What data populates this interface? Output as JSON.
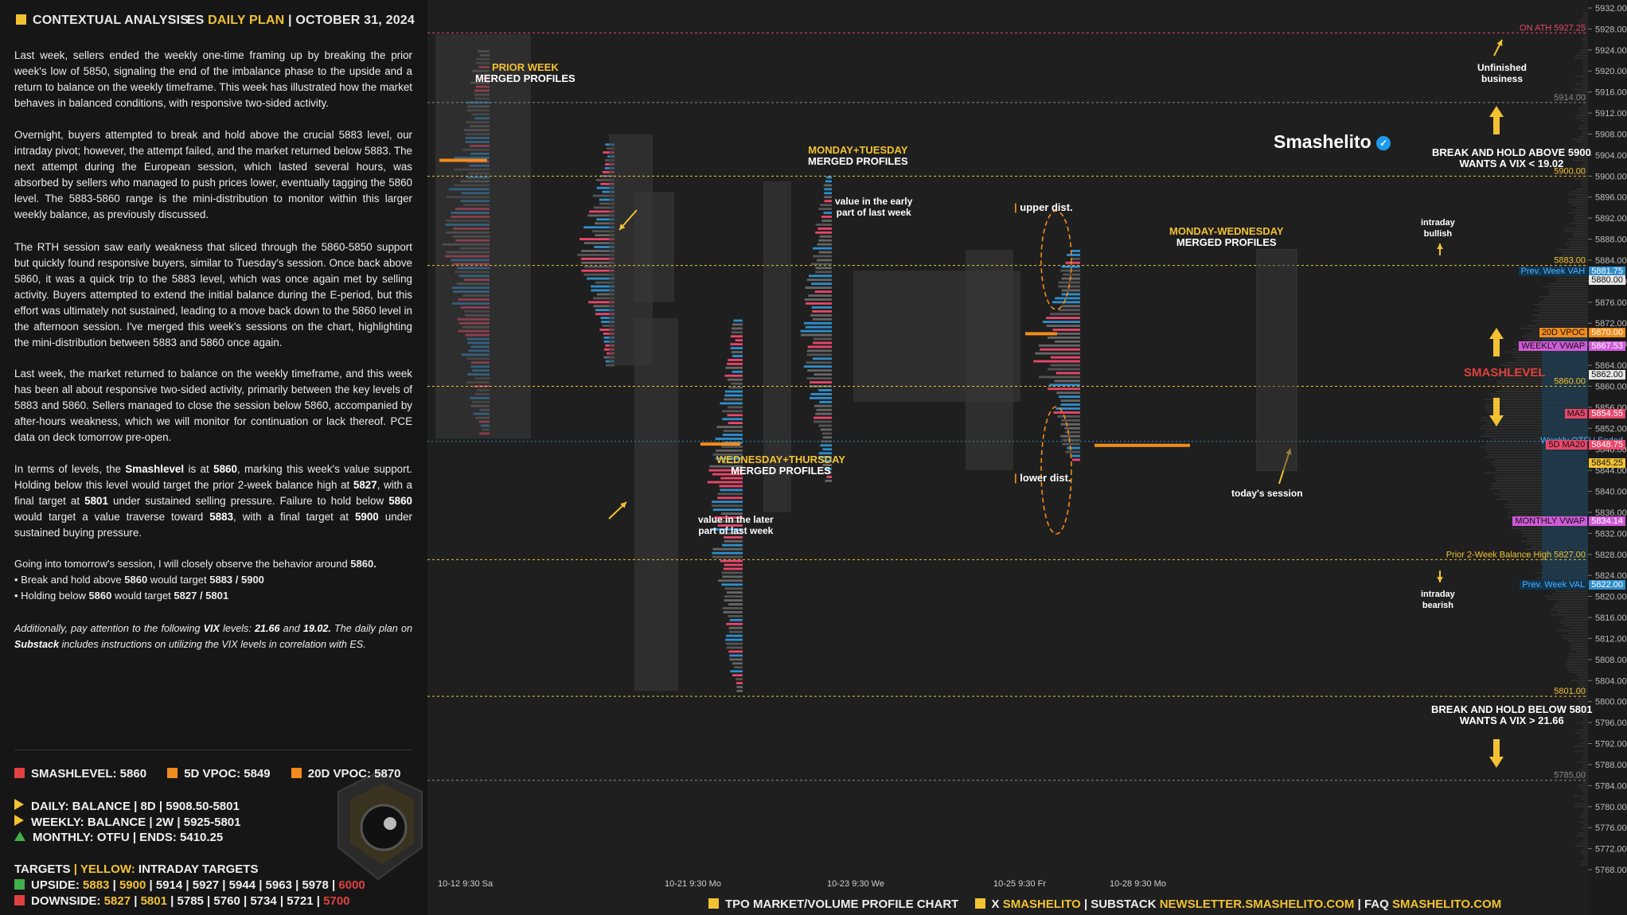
{
  "header": {
    "left_title": "CONTEXTUAL ANALYSIS",
    "right_es": "ES",
    "right_plan": "DAILY PLAN",
    "right_sep": "|",
    "right_date": "OCTOBER 31, 2024"
  },
  "analysis": {
    "p1": "Last week, sellers ended the weekly one-time framing up by breaking the prior week's low of 5850, signaling the end of the imbalance phase to the upside and a return to balance on the weekly timeframe. This week has illustrated how the market behaves in balanced conditions, with responsive two-sided activity.",
    "p2": "Overnight, buyers attempted to break and hold above the crucial 5883 level, our intraday pivot; however, the attempt failed, and the market returned below 5883. The next attempt during the European session, which lasted several hours, was absorbed by sellers who managed to push prices lower, eventually tagging the 5860 level. The 5883-5860 range is the mini-distribution to monitor within this larger weekly balance, as previously discussed.",
    "p3": "The RTH session saw early weakness that sliced through the 5860-5850 support but quickly found responsive buyers, similar to Tuesday's session. Once back above 5860, it was a quick trip to the 5883 level, which was once again met by selling activity. Buyers attempted to extend the initial balance during the E-period, but this effort was ultimately not sustained, leading to a move back down to the 5860 level in the afternoon session. I've merged this week's sessions on the chart, highlighting the mini-distribution between 5883 and 5860 once again.",
    "p4": "Last week, the market returned to balance on the weekly timeframe, and this week has been all about responsive two-sided activity, primarily between the key levels of 5883 and 5860. Sellers managed to close the session below 5860, accompanied by after-hours weakness, which we will monitor for continuation or lack thereof. PCE data on deck tomorrow pre-open.",
    "p5_a": "In terms of levels, the ",
    "p5_b": "Smashlevel",
    "p5_c": " is at ",
    "p5_d": "5860",
    "p5_e": ", marking this week's value support. Holding below this level would target the prior 2-week balance high at ",
    "p5_f": "5827",
    "p5_g": ", with a final target at ",
    "p5_h": "5801",
    "p5_i": " under sustained selling pressure. Failure to hold below ",
    "p5_j": "5860",
    "p5_k": " would target a value traverse toward ",
    "p5_l": "5883",
    "p5_m": ", with a final target at ",
    "p5_n": "5900",
    "p5_o": " under sustained buying pressure.",
    "p6_a": "Going into tomorrow's session, I will closely observe the behavior around ",
    "p6_b": "5860.",
    "b1_a": "• Break and hold above ",
    "b1_b": "5860",
    "b1_c": " would target ",
    "b1_d": "5883 / 5900",
    "b2_a": "• Holding below ",
    "b2_b": "5860",
    "b2_c": " would target ",
    "b2_d": "5827 / 5801",
    "p7_a": "Additionally, pay attention to the following ",
    "p7_b": "VIX",
    "p7_c": " levels: ",
    "p7_d": "21.66",
    "p7_e": " and ",
    "p7_f": "19.02.",
    "p7_g": " The daily plan on ",
    "p7_h": "Substack",
    "p7_i": " includes instructions on utilizing the VIX levels in correlation with ES."
  },
  "levels_summary": {
    "smashlevel": "SMASHLEVEL: 5860",
    "vpoc5d": "5D VPOC: 5849",
    "vpoc20d": "20D VPOC: 5870",
    "daily": "DAILY: BALANCE | 8D | 5908.50-5801",
    "weekly": "WEEKLY: BALANCE | 2W | 5925-5801",
    "monthly": "MONTHLY: OTFU | ENDS: 5410.25",
    "targets_a": "TARGETS",
    "targets_b": "|",
    "targets_c": "YELLOW:",
    "targets_d": "INTRADAY TARGETS",
    "upside_label": "UPSIDE:",
    "upside_y1": "5883",
    "upside_y2": "5900",
    "upside_rest": "5914 | 5927 | 5944 | 5963 | 5978",
    "upside_last": "6000",
    "downside_label": "DOWNSIDE:",
    "downside_y1": "5827",
    "downside_y2": "5801",
    "downside_rest": "5785 | 5760 | 5734 | 5721",
    "downside_last": "5700",
    "sep": "|"
  },
  "colors": {
    "yellow": "#f2c232",
    "red": "#e0413f",
    "orange": "#f28c1c",
    "green": "#3fb04a",
    "blue": "#2f8ecb",
    "pink": "#e8476a",
    "magenta": "#d05ad7"
  },
  "chart_data": {
    "type": "table",
    "price_axis": {
      "min": 5768,
      "max": 5932,
      "ticks": [
        5932,
        5928,
        5924,
        5920,
        5916,
        5912,
        5908,
        5904,
        5900,
        5896,
        5892,
        5888,
        5884,
        5880,
        5876,
        5872,
        5868,
        5864,
        5860,
        5856,
        5852,
        5848,
        5844,
        5840,
        5836,
        5832,
        5828,
        5824,
        5820,
        5816,
        5812,
        5808,
        5804,
        5800,
        5796,
        5792,
        5788,
        5784,
        5780,
        5776,
        5772,
        5768
      ]
    },
    "x_labels": [
      "10-12 9:30 Sa",
      "10-21 9:30 Mo",
      "10-23 9:30 We",
      "10-25 9:30 Fr",
      "10-28 9:30 Mo"
    ],
    "levels": [
      {
        "label": "ON ATH 5927.25",
        "price": 5927.25
      },
      {
        "label": "5914.00",
        "price": 5914.0
      },
      {
        "label": "5900.00",
        "price": 5900.0
      },
      {
        "label": "5883.00",
        "price": 5883.0
      },
      {
        "label": "5860.00",
        "price": 5860.0
      },
      {
        "label": "Prior 2-Week Balance High 5827.00",
        "price": 5827.0
      },
      {
        "label": "5801.00",
        "price": 5801.0
      },
      {
        "label": "5785.00",
        "price": 5785.0
      }
    ],
    "tags": [
      {
        "label": "Prev. Week VAH",
        "value": "5881.75",
        "color": "blue"
      },
      {
        "label": "",
        "value": "5880.00",
        "color": "white"
      },
      {
        "label": "20D VPOC",
        "value": "5870.00",
        "color": "orange"
      },
      {
        "label": "WEEKLY VWAP",
        "value": "5867.53",
        "color": "magenta"
      },
      {
        "label": "",
        "value": "5862.00",
        "color": "white"
      },
      {
        "label": "MA5",
        "value": "5854.55",
        "color": "pink"
      },
      {
        "label": "Weekly OTFU Ended",
        "value": "",
        "color": "blue"
      },
      {
        "label": "5D MA20",
        "value": "5848.75",
        "color": "pink"
      },
      {
        "label": "",
        "value": "5845.25",
        "color": "yellow"
      },
      {
        "label": "MONTHLY VWAP",
        "value": "5834.14",
        "color": "magenta"
      },
      {
        "label": "Prev. Week VAL",
        "value": "5822.00",
        "color": "blue"
      }
    ],
    "annotations": {
      "prior_week_1": "PRIOR WEEK",
      "prior_week_2": "MERGED PROFILES",
      "montue_1": "MONDAY+TUESDAY",
      "montue_2": "MERGED PROFILES",
      "value_early_1": "value in the early",
      "value_early_2": "part of last week",
      "wedthu_1": "WEDNESDAY+THURSDAY",
      "wedthu_2": "MERGED PROFILES",
      "value_later_1": "value in the later",
      "value_later_2": "part of last week",
      "upper_dist": "upper dist.",
      "lower_dist": "lower dist.",
      "monwed_1": "MONDAY-WEDNESDAY",
      "monwed_2": "MERGED PROFILES",
      "today": "today's session",
      "unfinished_1": "Unfinished",
      "unfinished_2": "business",
      "break_above_1": "BREAK AND HOLD ABOVE 5900",
      "break_above_2": "WANTS A VIX < 19.02",
      "intraday_bullish_1": "intraday",
      "intraday_bullish_2": "bullish",
      "smashlevel": "SMASHLEVEL",
      "intraday_bearish_1": "intraday",
      "intraday_bearish_2": "bearish",
      "break_below_1": "BREAK AND HOLD BELOW 5801",
      "break_below_2": "WANTS A VIX > 21.66",
      "brand": "Smashelito"
    }
  },
  "footer": {
    "f1": "TPO MARKET/VOLUME PROFILE CHART",
    "f2": "X",
    "f3": "SMASHELITO",
    "f4": "| SUBSTACK",
    "f5": "NEWSLETTER.SMASHELITO.COM",
    "f6": "| FAQ",
    "f7": "SMASHELITO.COM"
  }
}
